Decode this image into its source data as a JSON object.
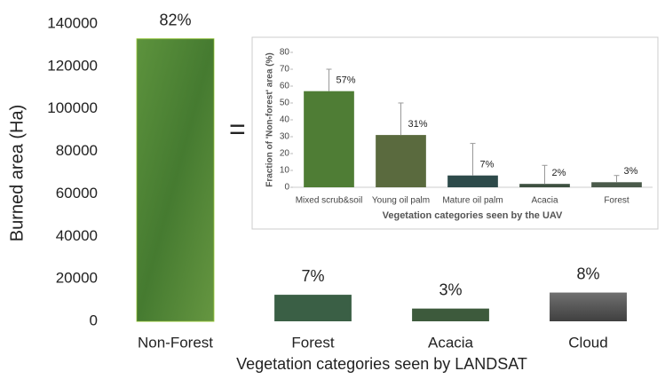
{
  "chart_data": [
    {
      "type": "bar",
      "y_label": "Burned area (Ha)",
      "x_label": "Vegetation categories seen by LANDSAT",
      "categories": [
        "Non-Forest",
        "Forest",
        "Acacia",
        "Cloud"
      ],
      "values": [
        133000,
        12500,
        6000,
        13500
      ],
      "annotations": [
        "82%",
        "7%",
        "3%",
        "8%"
      ],
      "colors": [
        "#4d8a33",
        "#3a5f45",
        "#3d5a3c",
        "#555555"
      ],
      "ylim": [
        0,
        140000
      ],
      "yticks": [
        0,
        20000,
        40000,
        60000,
        80000,
        100000,
        120000,
        140000
      ]
    },
    {
      "type": "bar",
      "y_label": "Fraction of 'Non-forest' area (%)",
      "x_label": "Vegetation categories seen by the UAV",
      "categories": [
        "Mixed scrub&soil",
        "Young oil palm",
        "Mature oil palm",
        "Acacia",
        "Forest"
      ],
      "values": [
        57,
        31,
        7,
        2,
        3
      ],
      "value_labels": [
        "57%",
        "31%",
        "7%",
        "2%",
        "3%"
      ],
      "errors": [
        13,
        19,
        19,
        11,
        4
      ],
      "colors": [
        "#4f7d35",
        "#5a6a3e",
        "#2d4a4a",
        "#3d5040",
        "#4a5a4a"
      ],
      "ylim": [
        0,
        80
      ],
      "yticks": [
        0,
        10,
        20,
        30,
        40,
        50,
        60,
        70,
        80
      ]
    }
  ]
}
